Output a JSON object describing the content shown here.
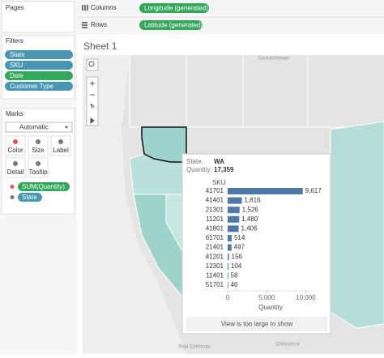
{
  "shelves": {
    "columns_label": "Columns",
    "columns_pill": "Longitude (generated)",
    "rows_label": "Rows",
    "rows_pill": "Latitude (generated)"
  },
  "pages": {
    "title": "Pages"
  },
  "filters": {
    "title": "Filters",
    "items": [
      "State",
      "SKU",
      "Date",
      "Customer Type"
    ]
  },
  "marks": {
    "title": "Marks",
    "mark_type": "Automatic",
    "buttons": [
      "Color",
      "Size",
      "Label",
      "Detail",
      "Tooltip"
    ],
    "pills": [
      "SUM(Quantity)",
      "State"
    ]
  },
  "sheet": {
    "title": "Sheet 1",
    "map_labels": [
      "Saskatchewan",
      "Baja California",
      "Chihuahua"
    ]
  },
  "tooltip": {
    "state_label": "State:",
    "state": "WA",
    "quantity_label": "Quantity:",
    "quantity": "17,359",
    "footer": "View is too large to show"
  },
  "chart_data": {
    "type": "bar",
    "orientation": "horizontal",
    "category_label": "SKU",
    "x_label": "Quantity",
    "categories": [
      "41701",
      "41401",
      "21301",
      "11201",
      "41801",
      "61701",
      "21401",
      "41201",
      "12301",
      "11401",
      "51701"
    ],
    "values": [
      9617,
      1816,
      1526,
      1480,
      1406,
      514,
      497,
      156,
      104,
      58,
      46
    ],
    "value_labels": [
      "9,617",
      "1,816",
      "1,526",
      "1,480",
      "1,406",
      "514",
      "497",
      "156",
      "104",
      "58",
      "46"
    ],
    "color": "#4e79a7",
    "xlim": [
      0,
      11000
    ],
    "xticks": [
      0,
      {
        "value": 5000,
        "label": "5,000"
      },
      {
        "value": 10000,
        "label": "10,000"
      }
    ]
  }
}
